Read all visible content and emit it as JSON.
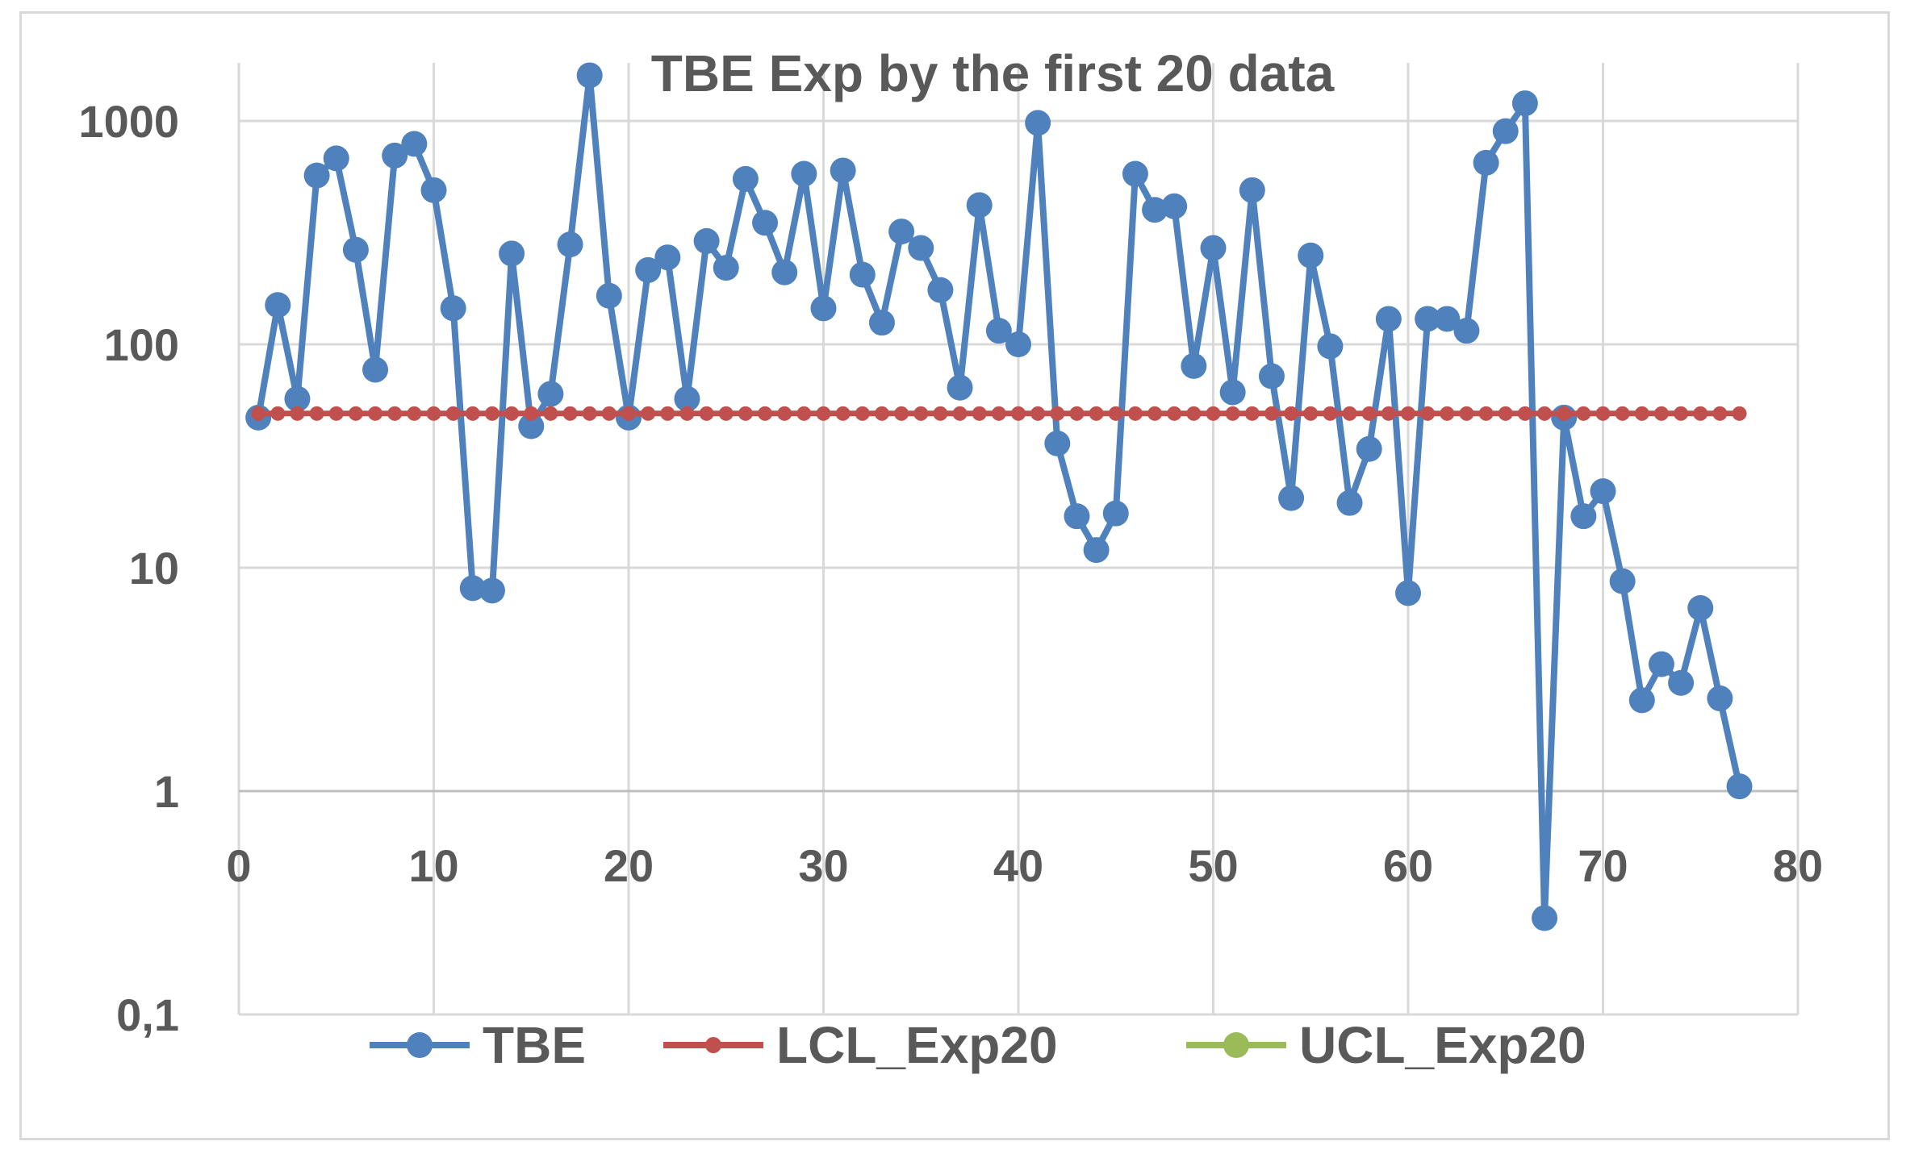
{
  "chart_data": {
    "type": "line",
    "title": "TBE Exp by the first 20 data",
    "xlabel": "",
    "ylabel": "",
    "yscale": "log",
    "xlim": [
      0,
      80
    ],
    "ylim": [
      0.1,
      3000
    ],
    "xticks": [
      "0",
      "10",
      "20",
      "30",
      "40",
      "50",
      "60",
      "70",
      "80"
    ],
    "yticks": [
      "0,1",
      "1",
      "10",
      "100",
      "1000"
    ],
    "legend_position": "bottom",
    "colors": {
      "TBE": "#4f81bd",
      "LCL_Exp20": "#c0504d",
      "UCL_Exp20": "#9bbb59"
    },
    "series": [
      {
        "name": "TBE",
        "x": [
          1,
          2,
          3,
          4,
          5,
          6,
          7,
          8,
          9,
          10,
          11,
          12,
          13,
          14,
          15,
          16,
          17,
          18,
          19,
          20,
          21,
          22,
          23,
          24,
          25,
          26,
          27,
          28,
          29,
          30,
          31,
          32,
          33,
          34,
          35,
          36,
          37,
          38,
          39,
          40,
          41,
          42,
          43,
          44,
          45,
          46,
          47,
          48,
          49,
          50,
          51,
          52,
          53,
          54,
          55,
          56,
          57,
          58,
          59,
          60,
          61,
          62,
          63,
          64,
          65,
          66,
          67,
          68,
          69,
          70,
          71,
          72,
          73,
          74,
          75,
          76,
          77
        ],
        "values": [
          47,
          150,
          57,
          570,
          680,
          265,
          77,
          700,
          790,
          490,
          145,
          8.1,
          7.9,
          255,
          43,
          60,
          280,
          1600,
          165,
          47,
          215,
          245,
          57,
          290,
          220,
          550,
          350,
          210,
          580,
          145,
          600,
          205,
          125,
          320,
          270,
          175,
          64,
          420,
          115,
          100,
          980,
          36,
          17,
          12,
          17.5,
          580,
          400,
          415,
          80,
          270,
          61,
          490,
          72,
          20.5,
          250,
          98,
          19.5,
          34,
          130,
          7.7,
          130,
          130,
          115,
          650,
          900,
          1200,
          0.27,
          47,
          17,
          22,
          8.7,
          2.55,
          3.7,
          3.05,
          6.6,
          2.6,
          1.05
        ]
      },
      {
        "name": "LCL_Exp20",
        "x": [
          1,
          2,
          3,
          4,
          5,
          6,
          7,
          8,
          9,
          10,
          11,
          12,
          13,
          14,
          15,
          16,
          17,
          18,
          19,
          20,
          21,
          22,
          23,
          24,
          25,
          26,
          27,
          28,
          29,
          30,
          31,
          32,
          33,
          34,
          35,
          36,
          37,
          38,
          39,
          40,
          41,
          42,
          43,
          44,
          45,
          46,
          47,
          48,
          49,
          50,
          51,
          52,
          53,
          54,
          55,
          56,
          57,
          58,
          59,
          60,
          61,
          62,
          63,
          64,
          65,
          66,
          67,
          68,
          69,
          70,
          71,
          72,
          73,
          74,
          75,
          76,
          77
        ],
        "values": [
          49,
          49,
          49,
          49,
          49,
          49,
          49,
          49,
          49,
          49,
          49,
          49,
          49,
          49,
          49,
          49,
          49,
          49,
          49,
          49,
          49,
          49,
          49,
          49,
          49,
          49,
          49,
          49,
          49,
          49,
          49,
          49,
          49,
          49,
          49,
          49,
          49,
          49,
          49,
          49,
          49,
          49,
          49,
          49,
          49,
          49,
          49,
          49,
          49,
          49,
          49,
          49,
          49,
          49,
          49,
          49,
          49,
          49,
          49,
          49,
          49,
          49,
          49,
          49,
          49,
          49,
          49,
          49,
          49,
          49,
          49,
          49,
          49,
          49,
          49,
          49,
          49
        ]
      },
      {
        "name": "UCL_Exp20",
        "x": [],
        "values": []
      }
    ]
  }
}
